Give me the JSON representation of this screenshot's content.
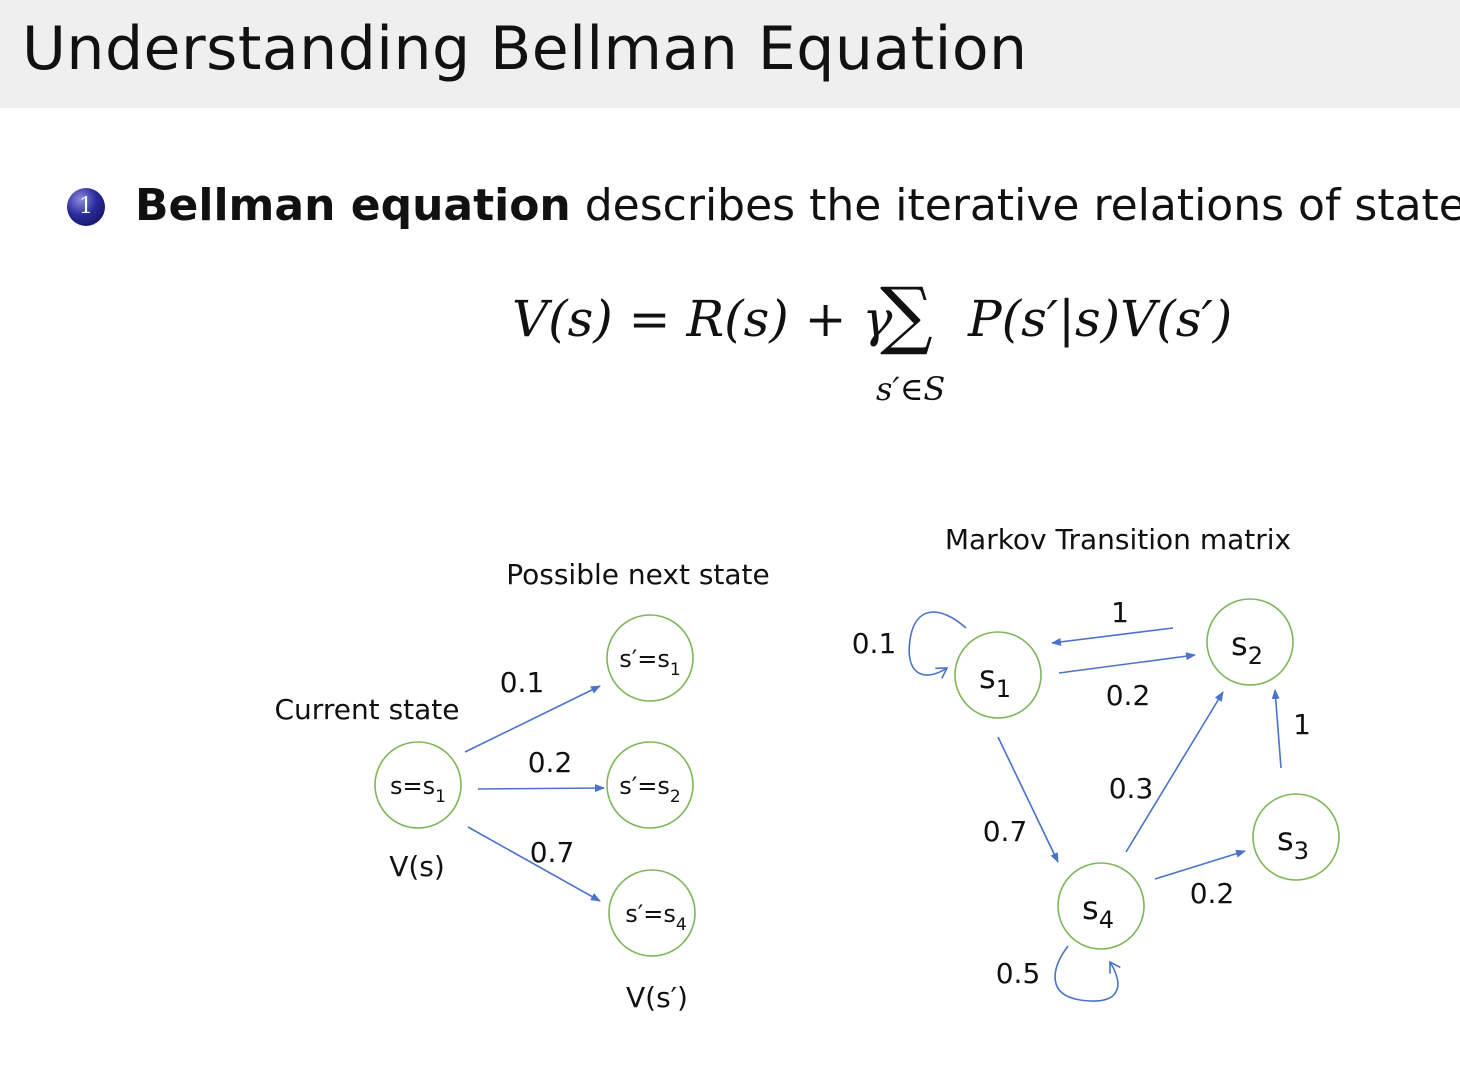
{
  "title": "Understanding Bellman Equation",
  "bullet": {
    "number": "1",
    "bold": "Bellman equation",
    "rest": " describes the iterative relations of states"
  },
  "equation": {
    "lhs": "V(s) = R(s) + γ",
    "sum": "∑",
    "sum_sub": "s′∈S",
    "rhs": "P(s′|s)V(s′)"
  },
  "left_diagram": {
    "current_label": "Current state",
    "next_label": "Possible next state",
    "current_value": "V(s)",
    "next_value": "V(s′)",
    "current_node": {
      "main": "s=s",
      "sub": "1"
    },
    "next_nodes": [
      {
        "main": "s′=s",
        "sub": "1",
        "prob": "0.1"
      },
      {
        "main": "s′=s",
        "sub": "2",
        "prob": "0.2"
      },
      {
        "main": "s′=s",
        "sub": "4",
        "prob": "0.7"
      }
    ]
  },
  "right_diagram": {
    "title": "Markov Transition matrix",
    "nodes": [
      {
        "main": "s",
        "sub": "1"
      },
      {
        "main": "s",
        "sub": "2"
      },
      {
        "main": "s",
        "sub": "3"
      },
      {
        "main": "s",
        "sub": "4"
      }
    ],
    "edges": [
      {
        "from": "s1",
        "to": "s1",
        "prob": "0.1"
      },
      {
        "from": "s2",
        "to": "s1",
        "prob": "1"
      },
      {
        "from": "s1",
        "to": "s2",
        "prob": "0.2"
      },
      {
        "from": "s3",
        "to": "s2",
        "prob": "1"
      },
      {
        "from": "s4",
        "to": "s2",
        "prob": "0.3"
      },
      {
        "from": "s1",
        "to": "s4",
        "prob": "0.7"
      },
      {
        "from": "s4",
        "to": "s3",
        "prob": "0.2"
      },
      {
        "from": "s4",
        "to": "s4",
        "prob": "0.5"
      }
    ]
  },
  "colors": {
    "node_stroke": "#7fb55a",
    "edge": "#4a72c8",
    "title_bg": "#efefef",
    "bullet": "#1c1c80"
  }
}
